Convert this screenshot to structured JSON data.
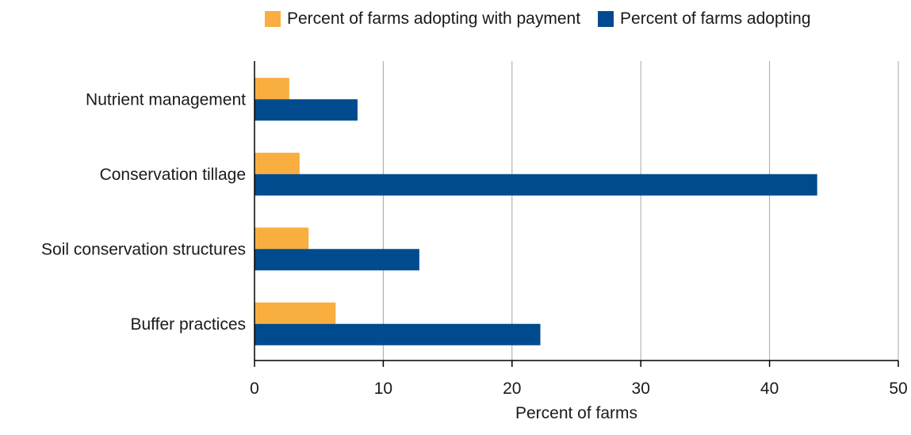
{
  "chart_data": {
    "type": "bar",
    "orientation": "horizontal",
    "title": "",
    "xlabel": "Percent of farms",
    "ylabel": "",
    "xlim": [
      0,
      50
    ],
    "xticks": [
      0,
      10,
      20,
      30,
      40,
      50
    ],
    "grid": true,
    "legend_position": "top",
    "categories": [
      "Nutrient management",
      "Conservation tillage",
      "Soil conservation structures",
      "Buffer practices"
    ],
    "series": [
      {
        "name": "Percent of farms adopting with payment",
        "color": "#f9ae40",
        "values": [
          2.7,
          3.5,
          4.2,
          6.3
        ]
      },
      {
        "name": "Percent of farms adopting",
        "color": "#004b8d",
        "values": [
          8.0,
          43.7,
          12.8,
          22.2
        ]
      }
    ]
  }
}
